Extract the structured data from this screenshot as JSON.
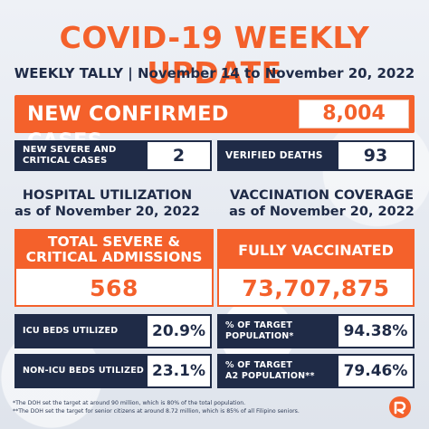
{
  "header": {
    "title": "COVID-19 WEEKLY UPDATE",
    "subtitle": "WEEKLY TALLY | November 14 to November 20, 2022"
  },
  "new_confirmed": {
    "label": "NEW CONFIRMED CASES",
    "value": "8,004"
  },
  "severe_critical": {
    "label_line1": "NEW SEVERE AND",
    "label_line2": "CRITICAL CASES",
    "value": "2"
  },
  "deaths": {
    "label": "VERIFIED DEATHS",
    "value": "93"
  },
  "hospital": {
    "title_line1": "HOSPITAL UTILIZATION",
    "title_line2": "as of November 20, 2022",
    "card_line1": "TOTAL SEVERE &",
    "card_line2": "CRITICAL ADMISSIONS",
    "card_value": "568",
    "icu_label": "ICU BEDS UTILIZED",
    "icu_value": "20.9%",
    "nonicu_label": "NON-ICU BEDS UTILIZED",
    "nonicu_value": "23.1%"
  },
  "vaccination": {
    "title_line1": "VACCINATION COVERAGE",
    "title_line2": "as of November 20, 2022",
    "card_label": "FULLY VACCINATED",
    "card_value": "73,707,875",
    "target_label_line1": "% OF TARGET",
    "target_label_line2": "POPULATION*",
    "target_value": "94.38%",
    "a2_label_line1": "% OF TARGET",
    "a2_label_line2": "A2 POPULATION**",
    "a2_value": "79.46%"
  },
  "footnotes": {
    "line1": "*The DOH set the target at around 90 million, which is 80% of the total population.",
    "line2": "**The DOH set the target for senior citizens at around 8.72 million, which is 85% of all Filipino seniors."
  },
  "colors": {
    "accent": "#f4612b",
    "navy": "#1f2b47",
    "background": "#e9edf3"
  },
  "logo": {
    "icon": "rappler-logo-icon"
  }
}
